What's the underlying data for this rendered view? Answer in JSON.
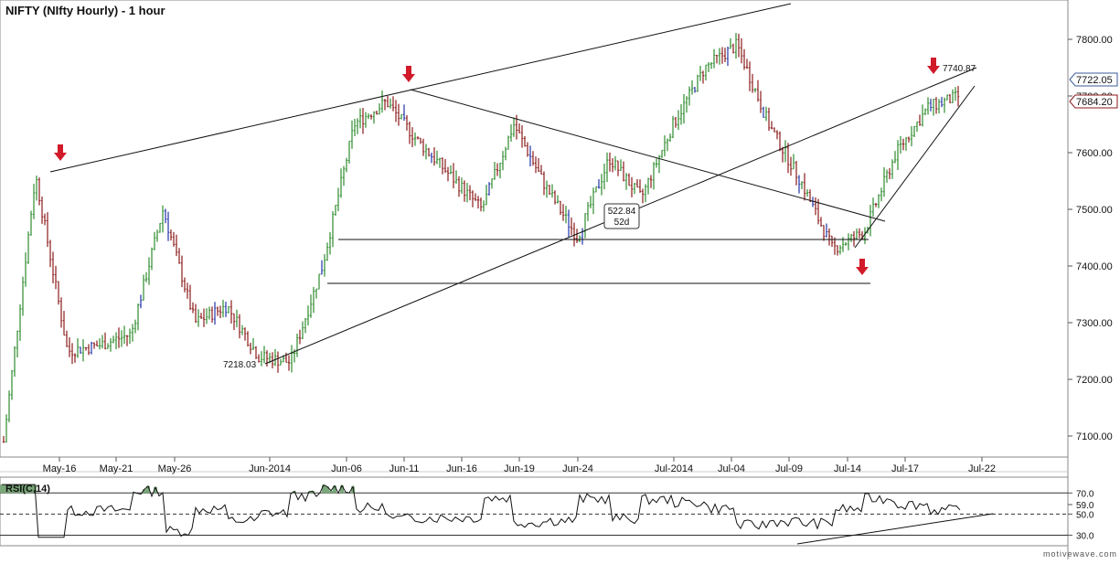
{
  "title": "NIFTY (NIfty Hourly) - 1 hour",
  "rsi_label": "RSI(C,14)",
  "watermark": "motivewave.com",
  "colors": {
    "up_bar": "#2e8b2e",
    "down_bar": "#8b1a1a",
    "blue_bar": "#2233aa",
    "arrow": "#d11a2a",
    "rsi_fill": "#7aa87a",
    "price_box_up": "#3c5a99",
    "price_box_down": "#8b1a1a"
  },
  "chart_data": [
    {
      "type": "ohlc",
      "ylim": [
        7050,
        7850
      ],
      "y_ticks": [
        "7100.00",
        "7200.00",
        "7300.00",
        "7400.00",
        "7500.00",
        "7600.00",
        "7700.00",
        "7800.00"
      ],
      "x_ticks": [
        "May-16",
        "May-21",
        "May-26",
        "Jun-2014",
        "Jun-06",
        "Jun-11",
        "Jun-16",
        "Jun-19",
        "Jun-24",
        "Jul-2014",
        "Jul-04",
        "Jul-09",
        "Jul-14",
        "Jul-17",
        "Jul-22"
      ],
      "price_labels": [
        "7722.05",
        "7684.20"
      ],
      "close_path": [
        [
          "May-16",
          7090
        ],
        [
          "May-16",
          7560
        ],
        [
          "May-16",
          7250
        ],
        [
          "May-21",
          7260
        ],
        [
          "May-21",
          7280
        ],
        [
          "May-26",
          7500
        ],
        [
          "May-26",
          7300
        ],
        [
          "May-26",
          7330
        ],
        [
          "Jun-2014",
          7240
        ],
        [
          "Jun-2014",
          7230
        ],
        [
          "Jun-06",
          7400
        ],
        [
          "Jun-06",
          7650
        ],
        [
          "Jun-11",
          7690
        ],
        [
          "Jun-11",
          7620
        ],
        [
          "Jun-16",
          7560
        ],
        [
          "Jun-16",
          7500
        ],
        [
          "Jun-19",
          7650
        ],
        [
          "Jun-19",
          7540
        ],
        [
          "Jun-24",
          7450
        ],
        [
          "Jun-24",
          7590
        ],
        [
          "Jul-2014",
          7520
        ],
        [
          "Jul-2014",
          7650
        ],
        [
          "Jul-04",
          7750
        ],
        [
          "Jul-04",
          7790
        ],
        [
          "Jul-09",
          7650
        ],
        [
          "Jul-09",
          7550
        ],
        [
          "Jul-14",
          7430
        ],
        [
          "Jul-14",
          7460
        ],
        [
          "Jul-17",
          7600
        ],
        [
          "Jul-17",
          7680
        ],
        [
          "Jul-17",
          7700
        ]
      ],
      "annotations": [
        {
          "text": "7218.03"
        },
        {
          "text": "522.84"
        },
        {
          "text": "52d"
        },
        {
          "text": "7740.87"
        }
      ]
    },
    {
      "type": "line",
      "name": "RSI(C,14)",
      "ylim": [
        20,
        85
      ],
      "y_ticks": [
        "70.0",
        "59.0",
        "50.0",
        "30.0"
      ],
      "overbought": 70,
      "midline": 50,
      "oversold": 30
    }
  ]
}
